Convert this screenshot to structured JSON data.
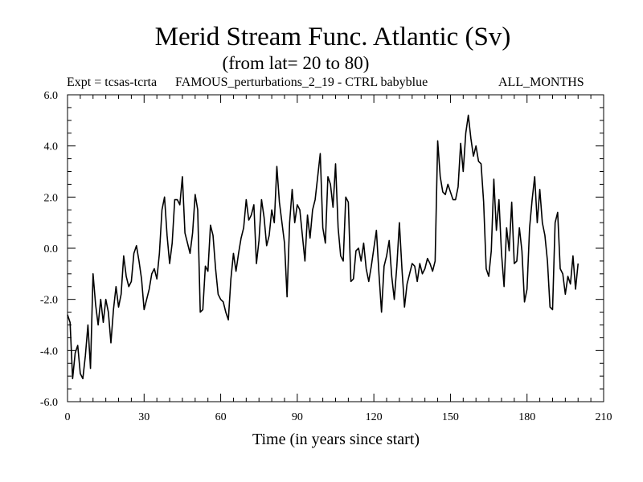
{
  "chart_data": {
    "type": "line",
    "title": "Merid Stream Func. Atlantic (Sv)",
    "subtitle": "(from lat= 20 to 80)",
    "info_left": "Expt = tcsas-tcrta",
    "info_center": "FAMOUS_perturbations_2_19 - CTRL babyblue",
    "info_right": "ALL_MONTHS",
    "xlabel": "Time (in years since start)",
    "ylabel": "",
    "xlim": [
      0,
      210
    ],
    "ylim": [
      -6.0,
      6.0
    ],
    "x_ticks": [
      0,
      30,
      60,
      90,
      120,
      150,
      180,
      210
    ],
    "x_tick_labels": [
      "0",
      "30",
      "60",
      "90",
      "120",
      "150",
      "180",
      "210"
    ],
    "y_ticks": [
      -6,
      -4,
      -2,
      0,
      2,
      4,
      6
    ],
    "y_tick_labels": [
      "-6.0",
      "-4.0",
      "-2.0",
      "0.0",
      "2.0",
      "4.0",
      "6.0"
    ],
    "series": [
      {
        "name": "Merid Stream Func. Atlantic",
        "color": "#000000",
        "x": [
          0,
          1,
          2,
          3,
          4,
          5,
          6,
          7,
          8,
          9,
          10,
          11,
          12,
          13,
          14,
          15,
          16,
          17,
          18,
          19,
          20,
          21,
          22,
          23,
          24,
          25,
          26,
          27,
          28,
          29,
          30,
          31,
          32,
          33,
          34,
          35,
          36,
          37,
          38,
          39,
          40,
          41,
          42,
          43,
          44,
          45,
          46,
          47,
          48,
          49,
          50,
          51,
          52,
          53,
          54,
          55,
          56,
          57,
          58,
          59,
          60,
          61,
          62,
          63,
          64,
          65,
          66,
          67,
          68,
          69,
          70,
          71,
          72,
          73,
          74,
          75,
          76,
          77,
          78,
          79,
          80,
          81,
          82,
          83,
          84,
          85,
          86,
          87,
          88,
          89,
          90,
          91,
          92,
          93,
          94,
          95,
          96,
          97,
          98,
          99,
          100,
          101,
          102,
          103,
          104,
          105,
          106,
          107,
          108,
          109,
          110,
          111,
          112,
          113,
          114,
          115,
          116,
          117,
          118,
          119,
          120,
          121,
          122,
          123,
          124,
          125,
          126,
          127,
          128,
          129,
          130,
          131,
          132,
          133,
          134,
          135,
          136,
          137,
          138,
          139,
          140,
          141,
          142,
          143,
          144,
          145,
          146,
          147,
          148,
          149,
          150,
          151,
          152,
          153,
          154,
          155,
          156,
          157,
          158,
          159,
          160,
          161,
          162,
          163,
          164,
          165,
          166,
          167,
          168,
          169,
          170,
          171,
          172,
          173,
          174,
          175,
          176,
          177,
          178,
          179,
          180,
          181,
          182,
          183,
          184,
          185,
          186,
          187,
          188,
          189,
          190,
          191,
          192,
          193,
          194,
          195,
          196,
          197,
          198,
          199,
          200
        ],
        "y": [
          -2.6,
          -2.9,
          -5.1,
          -4.1,
          -3.8,
          -4.9,
          -5.1,
          -4.2,
          -3.0,
          -4.7,
          -1.0,
          -2.2,
          -3.0,
          -2.0,
          -2.9,
          -2.0,
          -2.5,
          -3.7,
          -2.4,
          -1.5,
          -2.3,
          -1.8,
          -0.3,
          -1.1,
          -1.5,
          -1.3,
          -0.2,
          0.1,
          -0.5,
          -1.2,
          -2.4,
          -2.0,
          -1.6,
          -1.0,
          -0.8,
          -1.2,
          -0.2,
          1.5,
          2.0,
          0.5,
          -0.6,
          0.2,
          1.9,
          1.9,
          1.7,
          2.8,
          0.6,
          0.2,
          -0.2,
          0.6,
          2.1,
          1.5,
          -2.5,
          -2.4,
          -0.7,
          -0.9,
          0.9,
          0.5,
          -0.8,
          -1.8,
          -2.0,
          -2.1,
          -2.5,
          -2.8,
          -1.2,
          -0.2,
          -0.9,
          -0.2,
          0.4,
          0.8,
          1.9,
          1.1,
          1.3,
          1.7,
          -0.6,
          0.3,
          1.9,
          1.2,
          0.1,
          0.5,
          1.5,
          1.0,
          3.2,
          1.8,
          1.0,
          0.2,
          -1.9,
          1.0,
          2.3,
          1.0,
          1.7,
          1.5,
          0.5,
          -0.5,
          1.3,
          0.4,
          1.5,
          1.9,
          2.8,
          3.7,
          0.8,
          0.2,
          2.8,
          2.5,
          1.6,
          3.3,
          0.8,
          -0.3,
          -0.5,
          2.0,
          1.8,
          -1.3,
          -1.2,
          -0.1,
          0.0,
          -0.5,
          0.2,
          -0.8,
          -1.3,
          -0.7,
          0.0,
          0.7,
          -1.0,
          -2.5,
          -0.7,
          -0.3,
          0.3,
          -1.1,
          -2.0,
          -0.7,
          1.0,
          -0.8,
          -2.3,
          -1.4,
          -1.0,
          -0.6,
          -0.7,
          -1.3,
          -0.6,
          -1.0,
          -0.8,
          -0.4,
          -0.6,
          -0.9,
          -0.5,
          4.2,
          2.8,
          2.2,
          2.1,
          2.5,
          2.2,
          1.9,
          1.9,
          2.4,
          4.1,
          3.0,
          4.5,
          5.2,
          4.3,
          3.6,
          4.0,
          3.4,
          3.3,
          1.8,
          -0.8,
          -1.1,
          -0.1,
          2.7,
          0.7,
          1.9,
          -0.2,
          -1.5,
          0.8,
          -0.1,
          1.8,
          -0.6,
          -0.5,
          0.8,
          -0.1,
          -2.1,
          -1.6,
          0.8,
          1.9,
          2.8,
          1.0,
          2.3,
          1.0,
          0.5,
          -0.5,
          -2.3,
          -2.4,
          1.0,
          1.4,
          -0.8,
          -1.0,
          -1.8,
          -1.1,
          -1.4,
          -0.3,
          -1.6,
          -0.6
        ]
      }
    ]
  }
}
